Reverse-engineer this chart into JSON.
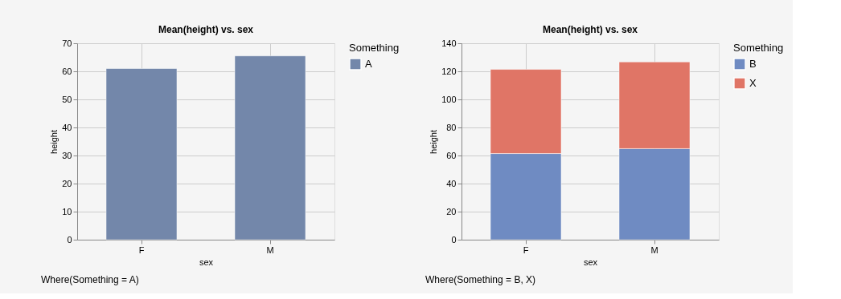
{
  "chart_data": [
    {
      "type": "bar",
      "title": "Mean(height) vs. sex",
      "xlabel": "sex",
      "ylabel": "height",
      "legend_title": "Something",
      "categories": [
        "F",
        "M"
      ],
      "series": [
        {
          "name": "A",
          "color": "#7387aa",
          "values": [
            61.0,
            65.5
          ]
        }
      ],
      "ylim": [
        0,
        70
      ],
      "yticks": [
        0,
        10,
        20,
        30,
        40,
        50,
        60,
        70
      ],
      "grid": true,
      "legend": "top right",
      "annotations": [
        "Where(Something = A)"
      ]
    },
    {
      "type": "bar",
      "title": "Mean(height) vs. sex",
      "xlabel": "sex",
      "ylabel": "height",
      "legend_title": "Something",
      "categories": [
        "F",
        "M"
      ],
      "stacked": true,
      "series": [
        {
          "name": "B",
          "color": "#6f8bc2",
          "values": [
            61.4,
            64.9
          ]
        },
        {
          "name": "X",
          "color": "#e07566",
          "values": [
            60.0,
            61.8
          ]
        }
      ],
      "ylim": [
        0,
        140
      ],
      "yticks": [
        0,
        20,
        40,
        60,
        80,
        100,
        120,
        140
      ],
      "grid": true,
      "legend": "top right",
      "annotations": [
        "Where(Something = B, X)"
      ]
    }
  ]
}
